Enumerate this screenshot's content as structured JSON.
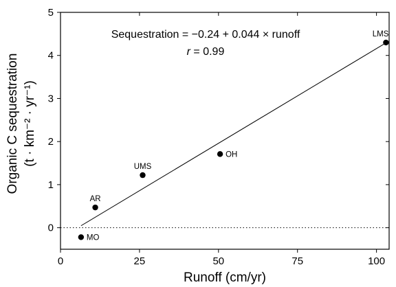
{
  "chart_data": {
    "type": "scatter",
    "xlabel": "Runoff (cm/yr)",
    "ylabel": {
      "line1": "Organic C sequestration",
      "line2": "(t · km⁻² · yr⁻¹)"
    },
    "xlim": [
      0,
      104
    ],
    "ylim": [
      -0.5,
      5
    ],
    "xticks": [
      0,
      25,
      50,
      75,
      100
    ],
    "yticks": [
      0,
      1,
      2,
      3,
      4,
      5
    ],
    "grid": false,
    "points": [
      {
        "label": "MO",
        "x": 6.5,
        "y": -0.22
      },
      {
        "label": "AR",
        "x": 11,
        "y": 0.47
      },
      {
        "label": "UMS",
        "x": 26,
        "y": 1.22
      },
      {
        "label": "OH",
        "x": 50.5,
        "y": 1.71
      },
      {
        "label": "LMS",
        "x": 103,
        "y": 4.3
      }
    ],
    "regression_line": {
      "x_start": 6.5,
      "x_end": 103,
      "intercept": -0.24,
      "slope": 0.044
    },
    "reference_line": {
      "y": 0,
      "style": "dotted"
    },
    "annotation": {
      "equation": "Sequestration = −0.24 + 0.044 × runoff",
      "r_symbol": "r",
      "r_value": " = 0.99"
    }
  }
}
